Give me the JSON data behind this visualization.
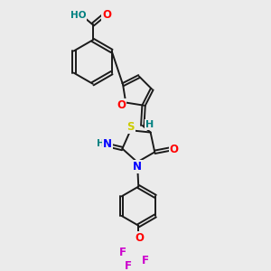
{
  "bg_color": "#ebebeb",
  "bond_color": "#1a1a1a",
  "atom_colors": {
    "O": "#ff0000",
    "N": "#0000ff",
    "S": "#cccc00",
    "F": "#cc00cc",
    "H": "#008080",
    "C": "#1a1a1a"
  },
  "lw": 1.4,
  "fs": 8.5
}
